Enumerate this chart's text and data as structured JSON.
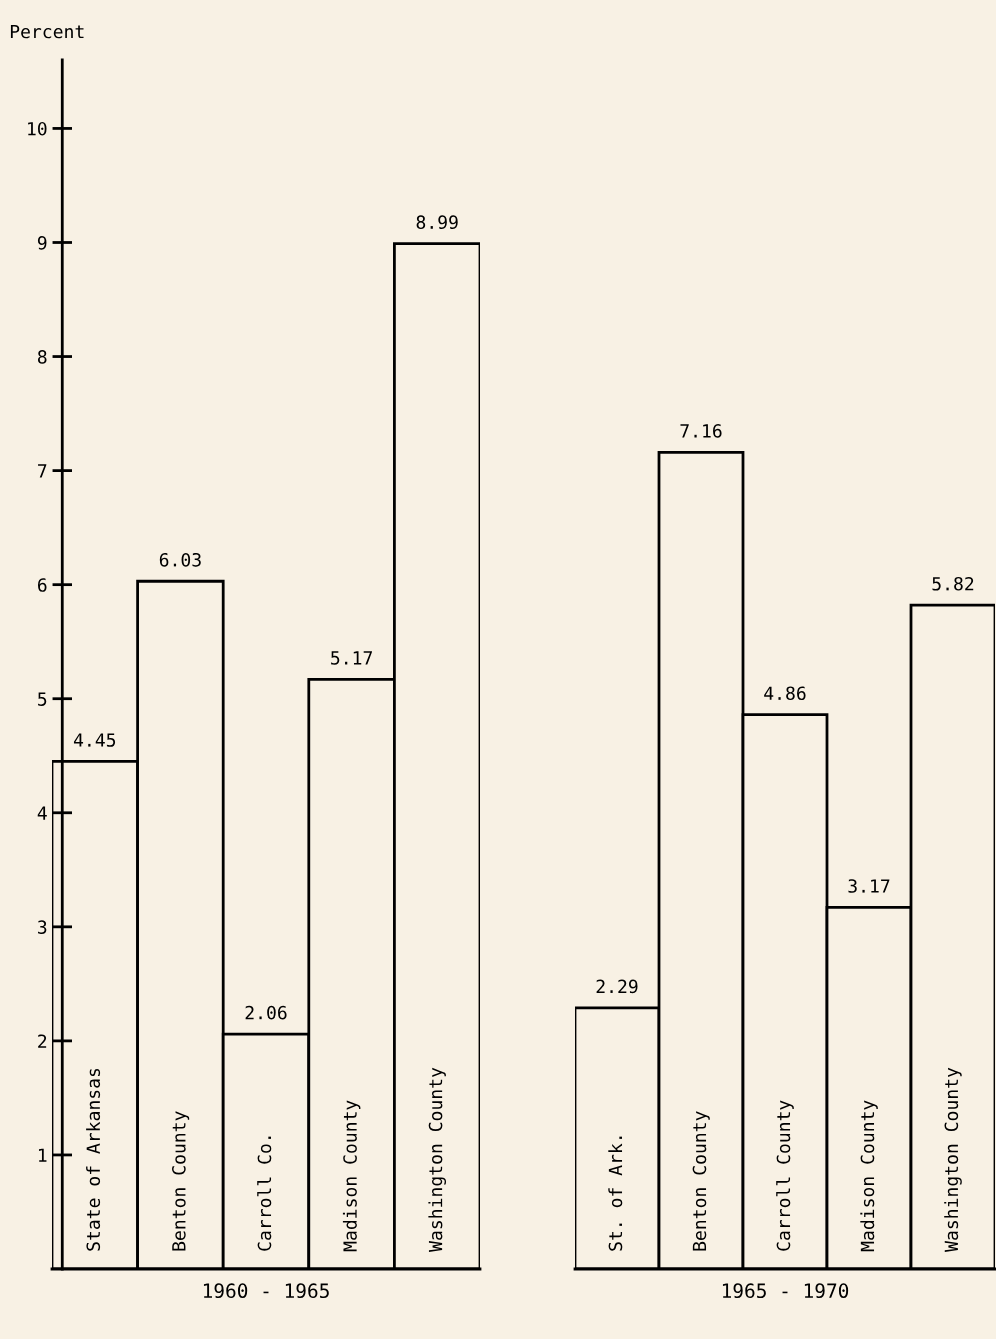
{
  "chart_data": [
    {
      "type": "bar",
      "ylabel": "Percent",
      "xlabel": "1960 - 1965",
      "categories": [
        "State of Arkansas",
        "Benton County",
        "Carroll Co.",
        "Madison County",
        "Washington County"
      ],
      "values": [
        4.45,
        6.03,
        2.06,
        5.17,
        8.99
      ],
      "color": "#f8f1e4",
      "ylim": [
        0,
        10.6
      ],
      "yticks": [
        1,
        2,
        3,
        4,
        5,
        6,
        7,
        8,
        9,
        10
      ],
      "data_labels": true,
      "grid": false
    },
    {
      "type": "bar",
      "xlabel": "1965 - 1970",
      "categories": [
        "St. of Ark.",
        "Benton County",
        "Carroll County",
        "Madison County",
        "Washington County"
      ],
      "values": [
        2.29,
        7.16,
        4.86,
        3.17,
        5.82
      ],
      "color": "#f8f1e4",
      "tick_labels": false,
      "data_labels": true,
      "grid": false
    }
  ]
}
